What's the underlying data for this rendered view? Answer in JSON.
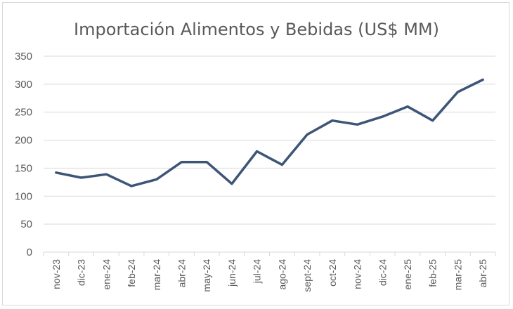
{
  "chart_data": {
    "type": "line",
    "title": "Importación Alimentos y Bebidas (US$ MM)",
    "xlabel": "",
    "ylabel": "",
    "ylim": [
      0,
      350
    ],
    "yticks": [
      0,
      50,
      100,
      150,
      200,
      250,
      300,
      350
    ],
    "grid": true,
    "legend": "none",
    "categories": [
      "nov-23",
      "dic-23",
      "ene-24",
      "feb-24",
      "mar-24",
      "abr-24",
      "may-24",
      "jun-24",
      "jul-24",
      "ago-24",
      "sept-24",
      "oct-24",
      "nov-24",
      "dic-24",
      "ene-25",
      "feb-25",
      "mar-25",
      "abr-25"
    ],
    "series": [
      {
        "values": [
          142,
          133,
          139,
          118,
          130,
          161,
          161,
          122,
          180,
          156,
          210,
          235,
          228,
          242,
          260,
          235,
          286,
          308
        ],
        "color": "#3d5577"
      }
    ]
  }
}
